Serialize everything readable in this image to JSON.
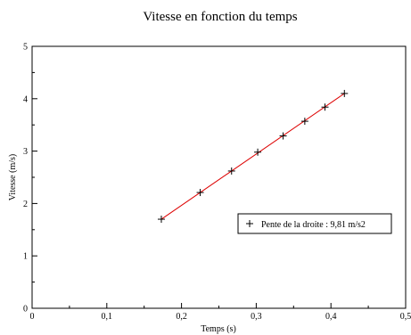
{
  "chart_data": {
    "type": "scatter",
    "title": "Vitesse en fonction du temps",
    "xlabel": "Temps (s)",
    "ylabel": "Vitesse (m/s)",
    "xlim": [
      0,
      0.5
    ],
    "ylim": [
      0,
      5
    ],
    "x_ticks": [
      "0",
      "0,1",
      "0,2",
      "0,3",
      "0,4",
      "0,5"
    ],
    "y_ticks": [
      "0",
      "1",
      "2",
      "3",
      "4",
      "5"
    ],
    "grid": false,
    "legend_position": "right",
    "series": [
      {
        "name": "Pente de la droite : 9,81 m/s2",
        "marker": "plus",
        "color": "#000000",
        "x": [
          0.173,
          0.225,
          0.267,
          0.302,
          0.336,
          0.365,
          0.392,
          0.418
        ],
        "y": [
          1.7,
          2.21,
          2.62,
          2.98,
          3.29,
          3.57,
          3.84,
          4.1
        ]
      }
    ],
    "fit_line": {
      "color": "#dd0000",
      "slope": 9.81,
      "x_range": [
        0.173,
        0.418
      ]
    }
  }
}
